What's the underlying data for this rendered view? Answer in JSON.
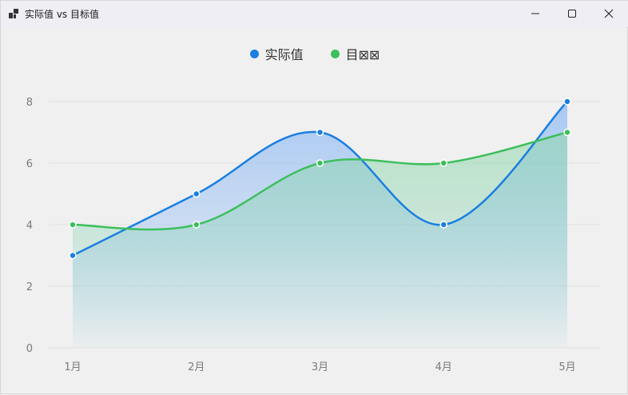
{
  "window": {
    "title": "实际值 vs 目标值",
    "icons": {
      "app": "app-window-icon",
      "minimize": "minimize-icon",
      "maximize": "maximize-icon",
      "close": "close-icon"
    }
  },
  "legend": [
    {
      "label": "实际值",
      "color": "#1a7fe0"
    },
    {
      "label": "目⊠⊠",
      "color": "#3cbf5c"
    }
  ],
  "chart_data": {
    "type": "area",
    "categories": [
      "1月",
      "2月",
      "3月",
      "4月",
      "5月"
    ],
    "series": [
      {
        "name": "实际值",
        "values": [
          3,
          5,
          7,
          4,
          8
        ],
        "color": "#1a7fe0"
      },
      {
        "name": "目⊠⊠",
        "values": [
          4,
          4,
          6,
          6,
          7
        ],
        "color": "#3cbf5c"
      }
    ],
    "y_ticks": [
      0,
      2,
      4,
      6,
      8
    ],
    "ylim": [
      0,
      8
    ],
    "smooth": true,
    "grid": true,
    "legend_position": "top-center"
  }
}
